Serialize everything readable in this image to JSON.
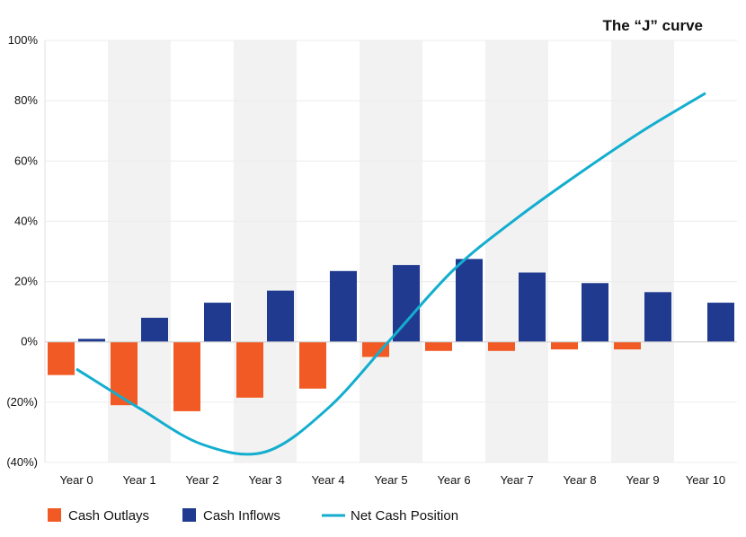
{
  "chart_data": {
    "type": "bar",
    "title": "The “J” curve",
    "categories": [
      "Year 0",
      "Year 1",
      "Year 2",
      "Year 3",
      "Year 4",
      "Year 5",
      "Year 6",
      "Year 7",
      "Year 8",
      "Year 9",
      "Year 10"
    ],
    "y_ticks": [
      "100%",
      "80%",
      "60%",
      "40%",
      "20%",
      "0%",
      "(20%)",
      "(40%)"
    ],
    "y_tick_values": [
      100,
      80,
      60,
      40,
      20,
      0,
      -20,
      -40
    ],
    "ylim": [
      -40,
      100
    ],
    "series": [
      {
        "name": "Cash Outlays",
        "type": "bar",
        "color": "#F15A24",
        "values": [
          -11,
          -21,
          -23,
          -18.5,
          -15.5,
          -5,
          -3,
          -3,
          -2.5,
          -2.5,
          0
        ]
      },
      {
        "name": "Cash Inflows",
        "type": "bar",
        "color": "#1F3A8F",
        "values": [
          1,
          8,
          13,
          17,
          23.5,
          25.5,
          27.5,
          23,
          19.5,
          16.5,
          13
        ]
      },
      {
        "name": "Net Cash Position",
        "type": "line",
        "color": "#13AECF",
        "values": [
          -9,
          -22,
          -34,
          -36.5,
          -22,
          1,
          24,
          41,
          56,
          70,
          82.5
        ]
      }
    ],
    "alternating_band_color": "#F2F2F2",
    "legend_position": "bottom-left"
  }
}
